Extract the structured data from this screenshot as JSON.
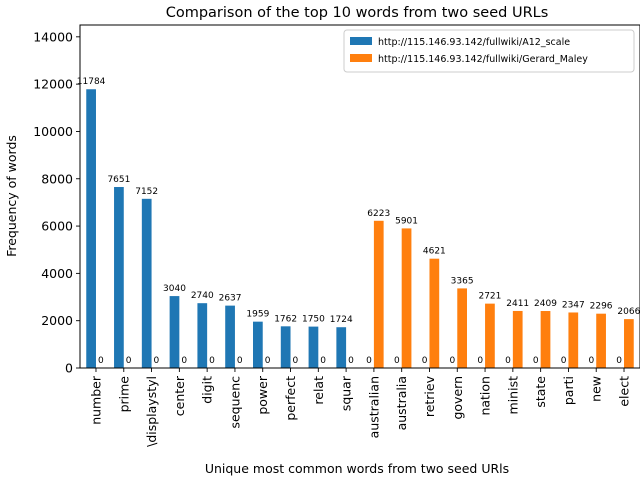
{
  "chart_data": {
    "type": "bar",
    "title": "Comparison of the top 10 words from two seed URLs",
    "xlabel": "Unique most common words from two seed URls",
    "ylabel": "Frequency of words",
    "ylim": [
      0,
      14500
    ],
    "yticks": [
      0,
      2000,
      4000,
      6000,
      8000,
      10000,
      12000,
      14000
    ],
    "grid": false,
    "legend_position": "top-right",
    "categories": [
      "number",
      "prime",
      "\\displaystyl",
      "center",
      "digit",
      "sequenc",
      "power",
      "perfect",
      "relat",
      "squar",
      "australian",
      "australia",
      "retriev",
      "govern",
      "nation",
      "minist",
      "state",
      "parti",
      "new",
      "elect"
    ],
    "series": [
      {
        "name": "http://115.146.93.142/fullwiki/A12_scale",
        "color": "#1f77b4",
        "values": [
          11784,
          7651,
          7152,
          3040,
          2740,
          2637,
          1959,
          1762,
          1750,
          1724,
          0,
          0,
          0,
          0,
          0,
          0,
          0,
          0,
          0,
          0
        ]
      },
      {
        "name": "http://115.146.93.142/fullwiki/Gerard_Maley",
        "color": "#ff7f0e",
        "values": [
          0,
          0,
          0,
          0,
          0,
          0,
          0,
          0,
          0,
          0,
          6223,
          5901,
          4621,
          3365,
          2721,
          2411,
          2409,
          2347,
          2296,
          2066
        ]
      }
    ]
  }
}
